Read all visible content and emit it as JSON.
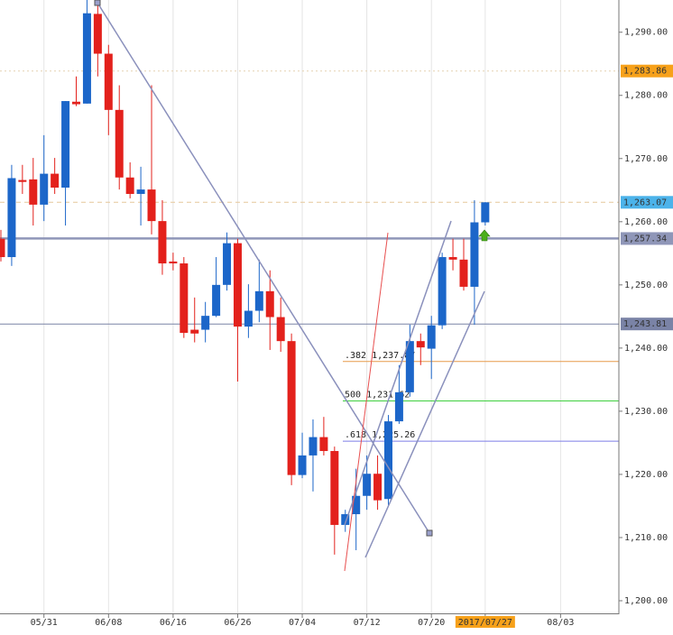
{
  "chart_data": {
    "type": "candlestick",
    "categories": [
      null,
      null,
      null,
      null,
      "05/31",
      null,
      null,
      null,
      null,
      null,
      "06/08",
      null,
      null,
      null,
      null,
      null,
      "06/16",
      null,
      null,
      null,
      null,
      null,
      "06/26",
      null,
      null,
      null,
      null,
      null,
      "07/04",
      null,
      null,
      null,
      null,
      null,
      "07/12",
      null,
      null,
      null,
      null,
      null,
      "07/20",
      null,
      null,
      null,
      null,
      "2017/07/27",
      null,
      null,
      null,
      null,
      null,
      null,
      "08/03",
      null,
      null,
      null,
      null,
      null
    ],
    "ohlc": {
      "open": [
        1257.3,
        1254.4,
        1266.6,
        1266.7,
        1262.7,
        1267.6,
        1265.4,
        1279.0,
        1278.7,
        1292.9,
        1286.6,
        1277.7,
        1267.0,
        1264.4,
        1265.1,
        1260.1,
        1253.7,
        1253.4,
        1242.9,
        1242.9,
        1245.1,
        1250.0,
        1256.6,
        1243.4,
        1245.9,
        1249.0,
        1244.9,
        1241.1,
        1219.9,
        1223.0,
        1225.9,
        1223.7,
        1212.0,
        1213.7,
        1216.6,
        1220.1,
        1216.1,
        1228.4,
        1233.0,
        1241.1,
        1239.9,
        1243.6,
        1254.4,
        1254.0,
        1249.7,
        1259.9,
        null,
        null,
        null,
        null,
        null,
        null,
        null,
        null,
        null,
        null,
        null,
        null
      ],
      "high": [
        1258.7,
        1269.0,
        1269.0,
        1270.1,
        1273.7,
        1270.1,
        1279.1,
        1283.0,
        1295.1,
        1294.4,
        1288.0,
        1281.6,
        1269.4,
        1268.7,
        1281.6,
        1263.4,
        1255.1,
        1254.4,
        1248.0,
        1247.3,
        1254.4,
        1258.3,
        1257.3,
        1250.1,
        1254.0,
        1252.3,
        1248.0,
        1242.3,
        1226.6,
        1228.7,
        1229.1,
        1224.4,
        1214.4,
        1220.9,
        1223.0,
        1223.0,
        1229.4,
        1237.3,
        1243.7,
        1242.3,
        1245.1,
        1255.1,
        1257.3,
        1257.3,
        1263.4,
        1263.1,
        null,
        null,
        null,
        null,
        null,
        null,
        null,
        null,
        null,
        null,
        null,
        null
      ],
      "low": [
        1253.7,
        1253.0,
        1264.4,
        1259.4,
        1260.1,
        1264.4,
        1259.4,
        1278.3,
        1278.7,
        1283.0,
        1273.7,
        1265.1,
        1263.7,
        1259.4,
        1258.0,
        1251.6,
        1252.3,
        1241.6,
        1240.9,
        1240.9,
        1244.9,
        1249.1,
        1234.7,
        1241.6,
        1244.1,
        1239.7,
        1239.4,
        1218.3,
        1219.4,
        1217.3,
        1223.0,
        1207.3,
        1210.9,
        1208.0,
        1214.4,
        1214.4,
        1215.1,
        1228.0,
        1232.3,
        1237.3,
        1235.1,
        1243.0,
        1252.3,
        1249.1,
        1243.7,
        1259.4,
        null,
        null,
        null,
        null,
        null,
        null,
        null,
        null,
        null,
        null,
        null,
        null
      ],
      "close": [
        1254.4,
        1266.9,
        1266.3,
        1262.7,
        1267.6,
        1265.4,
        1279.1,
        1278.6,
        1293.0,
        1286.6,
        1277.7,
        1267.0,
        1264.4,
        1265.1,
        1260.1,
        1253.4,
        1253.4,
        1242.4,
        1242.3,
        1245.1,
        1250.0,
        1256.6,
        1243.4,
        1245.9,
        1249.0,
        1244.9,
        1241.1,
        1219.9,
        1223.0,
        1225.9,
        1223.7,
        1212.0,
        1213.7,
        1216.6,
        1220.1,
        1215.9,
        1228.4,
        1233.0,
        1241.1,
        1240.1,
        1243.6,
        1254.4,
        1254.0,
        1249.7,
        1259.9,
        1263.07,
        null,
        null,
        null,
        null,
        null,
        null,
        null,
        null,
        null,
        null,
        null,
        null
      ]
    },
    "up_color": "#1c66c9",
    "down_color": "#e3211c",
    "ylim": [
      1198,
      1295.1
    ],
    "yticks": [
      {
        "value": 1200,
        "label": "1,200.00"
      },
      {
        "value": 1210,
        "label": "1,210.00"
      },
      {
        "value": 1220,
        "label": "1,220.00"
      },
      {
        "value": 1230,
        "label": "1,230.00"
      },
      {
        "value": 1240,
        "label": "1,240.00"
      },
      {
        "value": 1250,
        "label": "1,250.00"
      },
      {
        "value": 1260,
        "label": "1,260.00"
      },
      {
        "value": 1270,
        "label": "1,270.00"
      },
      {
        "value": 1280,
        "label": "1,280.00"
      },
      {
        "value": 1290,
        "label": "1,290.00"
      }
    ],
    "price_lines": [
      {
        "value": 1283.86,
        "label": "1,283.86",
        "color": "#f7a11a",
        "line": "dotted"
      },
      {
        "value": 1263.07,
        "label": "1,263.07",
        "color": "#4cb3ea",
        "line": "dashed"
      },
      {
        "value": 1257.34,
        "label": "1,257.34",
        "color": "#8f96b8",
        "line": "thick"
      },
      {
        "value": 1243.81,
        "label": "1,243.81",
        "color": "#7a83a6",
        "line": "solid"
      }
    ],
    "fib_levels": [
      {
        "value": 1237.87,
        "label": ".382 1,237.87",
        "color": "#e79a4a"
      },
      {
        "value": 1231.62,
        "label": "500 1,231.62",
        "color": "#3fcf3f"
      },
      {
        "value": 1225.26,
        "label": ".618 1,225.26",
        "color": "#7d7de8"
      }
    ],
    "cursor_index": 45,
    "cursor_color": "#f7a11a"
  }
}
